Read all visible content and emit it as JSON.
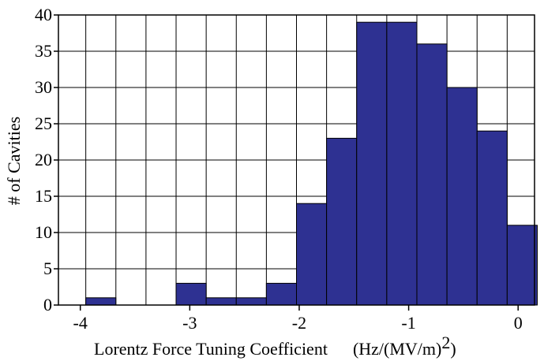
{
  "chart_data": {
    "type": "bar",
    "title": "",
    "xlabel": "Lorentz Force Tuning Coefficient",
    "xlabel_units": "(Hz/(MV/m)",
    "xlabel_units_superscript": "2",
    "xlabel_units_close": ")",
    "ylabel": "# of Cavities",
    "xlim": [
      -4.2,
      0.15
    ],
    "ylim": [
      0,
      40
    ],
    "grid": true,
    "legend": "none",
    "bar_color": "#2E3192",
    "edge_color": "#000000",
    "bin_width": 0.275,
    "bins": [
      {
        "x0": -3.95,
        "x1": -3.675,
        "count": 1
      },
      {
        "x0": -3.675,
        "x1": -3.4,
        "count": 0
      },
      {
        "x0": -3.4,
        "x1": -3.125,
        "count": 0
      },
      {
        "x0": -3.125,
        "x1": -2.85,
        "count": 3
      },
      {
        "x0": -2.85,
        "x1": -2.575,
        "count": 1
      },
      {
        "x0": -2.575,
        "x1": -2.3,
        "count": 1
      },
      {
        "x0": -2.3,
        "x1": -2.025,
        "count": 3
      },
      {
        "x0": -2.025,
        "x1": -1.75,
        "count": 14
      },
      {
        "x0": -1.75,
        "x1": -1.475,
        "count": 23
      },
      {
        "x0": -1.475,
        "x1": -1.2,
        "count": 39
      },
      {
        "x0": -1.2,
        "x1": -0.925,
        "count": 39
      },
      {
        "x0": -0.925,
        "x1": -0.65,
        "count": 36
      },
      {
        "x0": -0.65,
        "x1": -0.375,
        "count": 30
      },
      {
        "x0": -0.375,
        "x1": -0.1,
        "count": 24
      },
      {
        "x0": -0.1,
        "x1": 0.175,
        "count": 11
      }
    ],
    "xticks": [
      "-4",
      "-3",
      "-2",
      "-1",
      "0"
    ],
    "yticks": [
      "0",
      "5",
      "10",
      "15",
      "20",
      "25",
      "30",
      "35",
      "40"
    ]
  }
}
